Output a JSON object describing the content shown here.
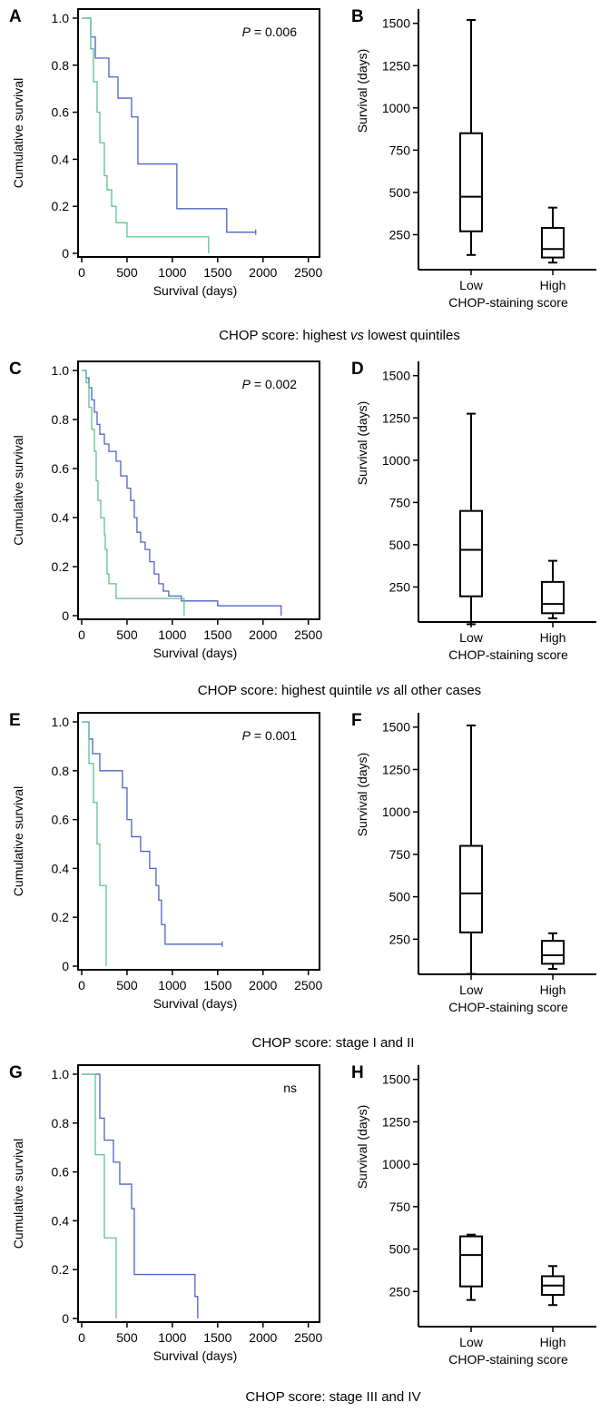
{
  "colors": {
    "low": "#4a64c8",
    "high": "#5cc48c",
    "axis": "#000000"
  },
  "rows": [
    {
      "km": {
        "panel": "A",
        "pvalue_prefix": "P",
        "pvalue_text": " = 0.006"
      },
      "box": {
        "panel": "B"
      },
      "caption": {
        "pre": "CHOP score: highest ",
        "em": "vs",
        "post": " lowest quintiles"
      }
    },
    {
      "km": {
        "panel": "C",
        "pvalue_prefix": "P",
        "pvalue_text": " = 0.002"
      },
      "box": {
        "panel": "D"
      },
      "caption": {
        "pre": "CHOP score: highest quintile ",
        "em": "vs",
        "post": " all other cases"
      }
    },
    {
      "km": {
        "panel": "E",
        "pvalue_prefix": "P",
        "pvalue_text": " = 0.001"
      },
      "box": {
        "panel": "F"
      },
      "caption": {
        "pre": "CHOP score: stage I and II",
        "em": "",
        "post": ""
      }
    },
    {
      "km": {
        "panel": "G",
        "pvalue_prefix": "",
        "pvalue_text": "ns"
      },
      "box": {
        "panel": "H"
      },
      "caption": {
        "pre": "CHOP score: stage III and IV",
        "em": "",
        "post": ""
      }
    }
  ],
  "chart_data": [
    {
      "panel": "A",
      "type": "line",
      "xlabel": "Survival (days)",
      "ylabel": "Cumulative survival",
      "xlim": [
        0,
        2500
      ],
      "ylim": [
        0,
        1.0
      ],
      "xticks": [
        "0",
        "500",
        "1000",
        "1500",
        "2000",
        "2500"
      ],
      "yticks": [
        "0",
        "0.2",
        "0.4",
        "0.6",
        "0.8",
        "1.0"
      ],
      "annotation": "P = 0.006",
      "series": [
        {
          "key": "low",
          "steps": [
            [
              0,
              1.0
            ],
            [
              100,
              0.92
            ],
            [
              150,
              0.83
            ],
            [
              300,
              0.75
            ],
            [
              400,
              0.66
            ],
            [
              550,
              0.58
            ],
            [
              620,
              0.38
            ],
            [
              1050,
              0.19
            ],
            [
              1600,
              0.09
            ],
            [
              1920,
              0.09
            ]
          ]
        },
        {
          "key": "high",
          "steps": [
            [
              0,
              1.0
            ],
            [
              100,
              0.87
            ],
            [
              130,
              0.73
            ],
            [
              170,
              0.6
            ],
            [
              200,
              0.47
            ],
            [
              250,
              0.33
            ],
            [
              280,
              0.27
            ],
            [
              330,
              0.2
            ],
            [
              380,
              0.13
            ],
            [
              500,
              0.07
            ],
            [
              1400,
              0.07
            ],
            [
              1400,
              0.0
            ]
          ]
        }
      ]
    },
    {
      "panel": "B",
      "type": "box",
      "xlabel": "CHOP-staining score",
      "ylabel": "Survival (days)",
      "ylim": [
        0,
        1520
      ],
      "yticks": [
        250,
        500,
        750,
        1000,
        1250,
        1500
      ],
      "categories": [
        "Low",
        "High"
      ],
      "boxes": [
        {
          "min": 130,
          "q1": 270,
          "median": 475,
          "q3": 850,
          "max": 1520
        },
        {
          "min": 85,
          "q1": 115,
          "median": 165,
          "q3": 290,
          "max": 410
        }
      ]
    },
    {
      "panel": "C",
      "type": "line",
      "xlabel": "Survival (days)",
      "ylabel": "Cumulative survival",
      "xlim": [
        0,
        2500
      ],
      "ylim": [
        0,
        1.0
      ],
      "xticks": [
        "0",
        "500",
        "1000",
        "1500",
        "2000",
        "2500"
      ],
      "yticks": [
        "0",
        "0.2",
        "0.4",
        "0.6",
        "0.8",
        "1.0"
      ],
      "annotation": "P = 0.002",
      "series": [
        {
          "key": "low",
          "steps": [
            [
              0,
              1.0
            ],
            [
              50,
              0.97
            ],
            [
              80,
              0.93
            ],
            [
              110,
              0.88
            ],
            [
              140,
              0.83
            ],
            [
              170,
              0.78
            ],
            [
              200,
              0.74
            ],
            [
              250,
              0.7
            ],
            [
              300,
              0.67
            ],
            [
              380,
              0.63
            ],
            [
              430,
              0.57
            ],
            [
              500,
              0.52
            ],
            [
              540,
              0.47
            ],
            [
              580,
              0.4
            ],
            [
              610,
              0.34
            ],
            [
              650,
              0.3
            ],
            [
              700,
              0.27
            ],
            [
              750,
              0.22
            ],
            [
              800,
              0.17
            ],
            [
              850,
              0.13
            ],
            [
              900,
              0.1
            ],
            [
              960,
              0.08
            ],
            [
              1100,
              0.06
            ],
            [
              1500,
              0.04
            ],
            [
              2200,
              0.04
            ],
            [
              2200,
              0.0
            ]
          ]
        },
        {
          "key": "high",
          "steps": [
            [
              0,
              1.0
            ],
            [
              50,
              0.95
            ],
            [
              80,
              0.85
            ],
            [
              110,
              0.76
            ],
            [
              140,
              0.67
            ],
            [
              160,
              0.55
            ],
            [
              180,
              0.47
            ],
            [
              210,
              0.4
            ],
            [
              250,
              0.33
            ],
            [
              260,
              0.27
            ],
            [
              280,
              0.17
            ],
            [
              300,
              0.13
            ],
            [
              380,
              0.07
            ],
            [
              1130,
              0.07
            ],
            [
              1130,
              0.0
            ]
          ]
        }
      ]
    },
    {
      "panel": "D",
      "type": "box",
      "xlabel": "CHOP-staining score",
      "ylabel": "Survival (days)",
      "ylim": [
        0,
        1520
      ],
      "yticks": [
        250,
        500,
        750,
        1000,
        1250,
        1500
      ],
      "categories": [
        "Low",
        "High"
      ],
      "boxes": [
        {
          "min": 30,
          "q1": 195,
          "median": 470,
          "q3": 700,
          "max": 1275
        },
        {
          "min": 65,
          "q1": 95,
          "median": 150,
          "q3": 280,
          "max": 405
        }
      ]
    },
    {
      "panel": "E",
      "type": "line",
      "xlabel": "Survival (days)",
      "ylabel": "Cumulative survival",
      "xlim": [
        0,
        2500
      ],
      "ylim": [
        0,
        1.0
      ],
      "xticks": [
        "0",
        "500",
        "1000",
        "1500",
        "2000",
        "2500"
      ],
      "yticks": [
        "0",
        "0.2",
        "0.4",
        "0.6",
        "0.8",
        "1.0"
      ],
      "annotation": "P = 0.001",
      "series": [
        {
          "key": "low",
          "steps": [
            [
              0,
              1.0
            ],
            [
              80,
              0.93
            ],
            [
              120,
              0.87
            ],
            [
              200,
              0.8
            ],
            [
              450,
              0.73
            ],
            [
              500,
              0.6
            ],
            [
              550,
              0.53
            ],
            [
              650,
              0.47
            ],
            [
              750,
              0.4
            ],
            [
              820,
              0.33
            ],
            [
              850,
              0.27
            ],
            [
              880,
              0.17
            ],
            [
              920,
              0.09
            ],
            [
              1550,
              0.09
            ]
          ]
        },
        {
          "key": "high",
          "steps": [
            [
              0,
              1.0
            ],
            [
              80,
              0.83
            ],
            [
              130,
              0.67
            ],
            [
              170,
              0.5
            ],
            [
              200,
              0.33
            ],
            [
              270,
              0.0
            ]
          ]
        }
      ]
    },
    {
      "panel": "F",
      "type": "box",
      "xlabel": "CHOP-staining score",
      "ylabel": "Survival (days)",
      "ylim": [
        0,
        1520
      ],
      "yticks": [
        250,
        500,
        750,
        1000,
        1250,
        1500
      ],
      "categories": [
        "Low",
        "High"
      ],
      "boxes": [
        {
          "min": 45,
          "q1": 290,
          "median": 520,
          "q3": 800,
          "max": 1510
        },
        {
          "min": 75,
          "q1": 105,
          "median": 155,
          "q3": 240,
          "max": 285
        }
      ]
    },
    {
      "panel": "G",
      "type": "line",
      "xlabel": "Survival (days)",
      "ylabel": "Cumulative survival",
      "xlim": [
        0,
        2500
      ],
      "ylim": [
        0,
        1.0
      ],
      "xticks": [
        "0",
        "500",
        "1000",
        "1500",
        "2000",
        "2500"
      ],
      "yticks": [
        "0",
        "0.2",
        "0.4",
        "0.6",
        "0.8",
        "1.0"
      ],
      "annotation": "ns",
      "series": [
        {
          "key": "low",
          "steps": [
            [
              0,
              1.0
            ],
            [
              200,
              0.82
            ],
            [
              250,
              0.73
            ],
            [
              350,
              0.64
            ],
            [
              420,
              0.55
            ],
            [
              550,
              0.45
            ],
            [
              580,
              0.18
            ],
            [
              1220,
              0.18
            ],
            [
              1250,
              0.09
            ],
            [
              1280,
              0.0
            ]
          ]
        },
        {
          "key": "high",
          "steps": [
            [
              0,
              1.0
            ],
            [
              150,
              0.67
            ],
            [
              250,
              0.33
            ],
            [
              380,
              0.0
            ]
          ]
        }
      ]
    },
    {
      "panel": "H",
      "type": "box",
      "xlabel": "CHOP-staining score",
      "ylabel": "Survival (days)",
      "ylim": [
        0,
        1520
      ],
      "yticks": [
        250,
        500,
        750,
        1000,
        1250,
        1500
      ],
      "categories": [
        "Low",
        "High"
      ],
      "boxes": [
        {
          "min": 200,
          "q1": 280,
          "median": 465,
          "q3": 575,
          "max": 585
        },
        {
          "min": 170,
          "q1": 230,
          "median": 285,
          "q3": 340,
          "max": 400
        }
      ]
    }
  ]
}
